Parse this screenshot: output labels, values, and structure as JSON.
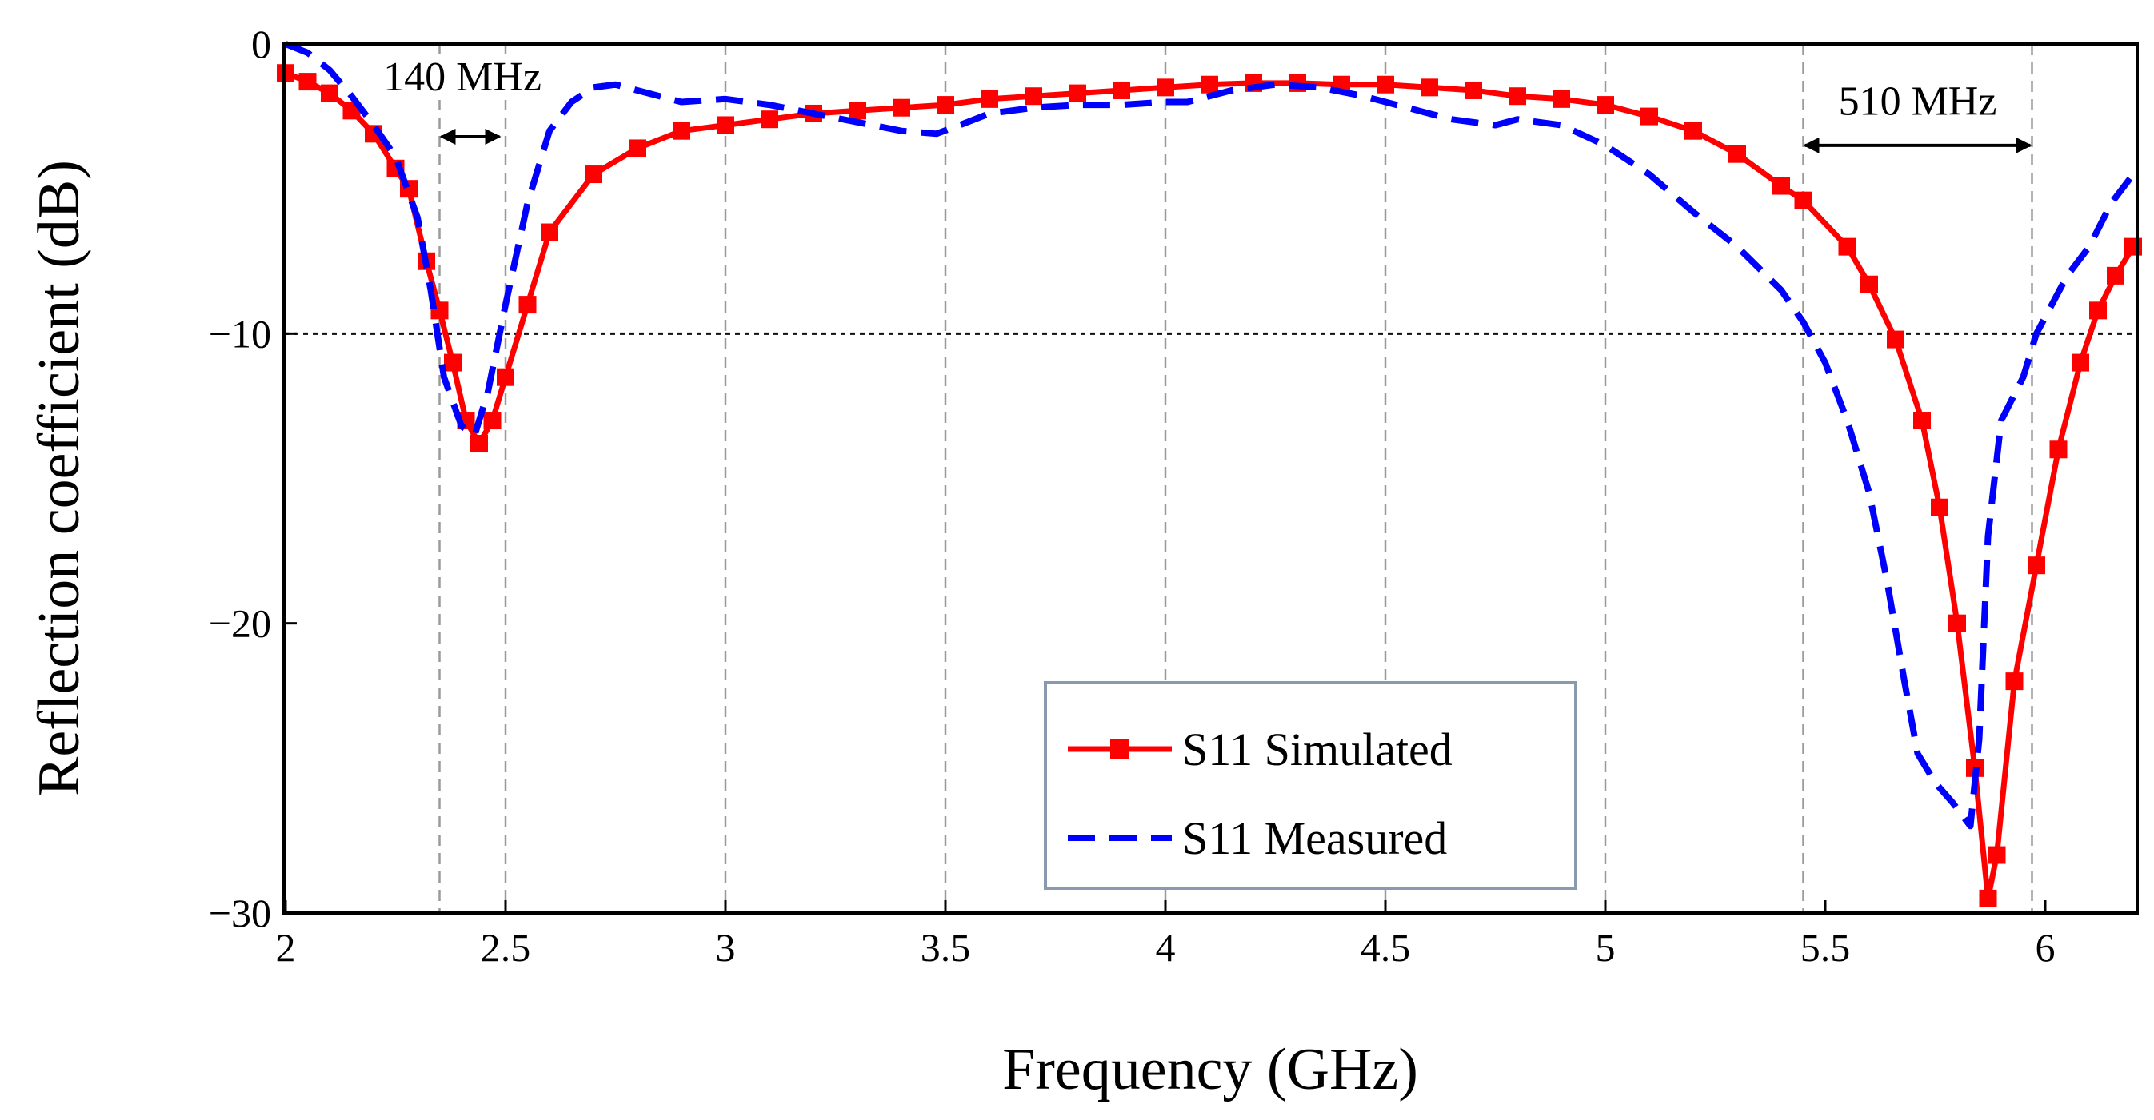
{
  "chart_data": {
    "type": "line",
    "title": "",
    "xlabel": "Frequency (GHz)",
    "ylabel": "Reflection coefficient (dB)",
    "xlim": [
      2,
      6.2
    ],
    "ylim": [
      -30,
      0
    ],
    "x_ticks": [
      2,
      2.5,
      3,
      3.5,
      4,
      4.5,
      5,
      5.5,
      6
    ],
    "x_tick_labels": [
      "2",
      "2.5",
      "3",
      "3.5",
      "4",
      "4.5",
      "5",
      "5.5",
      "6"
    ],
    "y_ticks": [
      0,
      -10,
      -20,
      -30
    ],
    "y_tick_labels": [
      "0",
      "−10",
      "−20",
      "−30"
    ],
    "grid": {
      "vertical_dashed_at": [
        2.35,
        2.5,
        3,
        3.5,
        4,
        4.5,
        5,
        5.45,
        5.97
      ],
      "horizontal_dotted_at": [
        -10
      ]
    },
    "legend": {
      "position": "bottom-center",
      "entries": [
        "S11 Simulated",
        "S11 Measured"
      ]
    },
    "annotations": [
      {
        "text": "140 MHz",
        "from": 2.35,
        "to": 2.49,
        "y": -3.2
      },
      {
        "text": "510 MHz",
        "from": 5.45,
        "to": 5.97,
        "y": -3.5
      }
    ],
    "series": [
      {
        "name": "S11 Simulated",
        "color": "#ff0000",
        "style": "solid-square-markers",
        "points": [
          [
            2.0,
            -1.0
          ],
          [
            2.05,
            -1.3
          ],
          [
            2.1,
            -1.7
          ],
          [
            2.15,
            -2.3
          ],
          [
            2.2,
            -3.1
          ],
          [
            2.25,
            -4.3
          ],
          [
            2.28,
            -5.0
          ],
          [
            2.32,
            -7.5
          ],
          [
            2.35,
            -9.2
          ],
          [
            2.38,
            -11.0
          ],
          [
            2.41,
            -13.0
          ],
          [
            2.44,
            -13.8
          ],
          [
            2.47,
            -13.0
          ],
          [
            2.5,
            -11.5
          ],
          [
            2.55,
            -9.0
          ],
          [
            2.6,
            -6.5
          ],
          [
            2.7,
            -4.5
          ],
          [
            2.8,
            -3.6
          ],
          [
            2.9,
            -3.0
          ],
          [
            3.0,
            -2.8
          ],
          [
            3.1,
            -2.6
          ],
          [
            3.2,
            -2.4
          ],
          [
            3.3,
            -2.3
          ],
          [
            3.4,
            -2.2
          ],
          [
            3.5,
            -2.1
          ],
          [
            3.6,
            -1.9
          ],
          [
            3.7,
            -1.8
          ],
          [
            3.8,
            -1.7
          ],
          [
            3.9,
            -1.6
          ],
          [
            4.0,
            -1.5
          ],
          [
            4.1,
            -1.4
          ],
          [
            4.2,
            -1.35
          ],
          [
            4.3,
            -1.35
          ],
          [
            4.4,
            -1.4
          ],
          [
            4.5,
            -1.4
          ],
          [
            4.6,
            -1.5
          ],
          [
            4.7,
            -1.6
          ],
          [
            4.8,
            -1.8
          ],
          [
            4.9,
            -1.9
          ],
          [
            5.0,
            -2.1
          ],
          [
            5.1,
            -2.5
          ],
          [
            5.2,
            -3.0
          ],
          [
            5.3,
            -3.8
          ],
          [
            5.4,
            -4.9
          ],
          [
            5.45,
            -5.4
          ],
          [
            5.55,
            -7.0
          ],
          [
            5.6,
            -8.3
          ],
          [
            5.66,
            -10.2
          ],
          [
            5.72,
            -13.0
          ],
          [
            5.76,
            -16.0
          ],
          [
            5.8,
            -20.0
          ],
          [
            5.84,
            -25.0
          ],
          [
            5.87,
            -29.5
          ],
          [
            5.89,
            -28.0
          ],
          [
            5.93,
            -22.0
          ],
          [
            5.98,
            -18.0
          ],
          [
            6.03,
            -14.0
          ],
          [
            6.08,
            -11.0
          ],
          [
            6.12,
            -9.2
          ],
          [
            6.16,
            -8.0
          ],
          [
            6.2,
            -7.0
          ]
        ]
      },
      {
        "name": "S11 Measured",
        "color": "#0000ff",
        "style": "dashed",
        "points": [
          [
            2.0,
            0.0
          ],
          [
            2.05,
            -0.3
          ],
          [
            2.1,
            -0.9
          ],
          [
            2.15,
            -1.8
          ],
          [
            2.2,
            -2.8
          ],
          [
            2.25,
            -3.9
          ],
          [
            2.3,
            -6.0
          ],
          [
            2.33,
            -8.5
          ],
          [
            2.36,
            -11.5
          ],
          [
            2.4,
            -13.2
          ],
          [
            2.43,
            -13.5
          ],
          [
            2.46,
            -12.0
          ],
          [
            2.5,
            -9.0
          ],
          [
            2.55,
            -5.5
          ],
          [
            2.6,
            -3.0
          ],
          [
            2.65,
            -2.0
          ],
          [
            2.7,
            -1.5
          ],
          [
            2.75,
            -1.4
          ],
          [
            2.8,
            -1.6
          ],
          [
            2.9,
            -2.0
          ],
          [
            3.0,
            -1.9
          ],
          [
            3.1,
            -2.1
          ],
          [
            3.2,
            -2.4
          ],
          [
            3.3,
            -2.7
          ],
          [
            3.4,
            -3.0
          ],
          [
            3.48,
            -3.1
          ],
          [
            3.55,
            -2.7
          ],
          [
            3.6,
            -2.4
          ],
          [
            3.7,
            -2.2
          ],
          [
            3.8,
            -2.1
          ],
          [
            3.9,
            -2.1
          ],
          [
            4.0,
            -2.0
          ],
          [
            4.05,
            -2.0
          ],
          [
            4.15,
            -1.6
          ],
          [
            4.25,
            -1.4
          ],
          [
            4.35,
            -1.5
          ],
          [
            4.45,
            -1.8
          ],
          [
            4.55,
            -2.2
          ],
          [
            4.65,
            -2.6
          ],
          [
            4.75,
            -2.8
          ],
          [
            4.8,
            -2.6
          ],
          [
            4.9,
            -2.8
          ],
          [
            5.0,
            -3.5
          ],
          [
            5.1,
            -4.5
          ],
          [
            5.2,
            -5.8
          ],
          [
            5.3,
            -7.0
          ],
          [
            5.4,
            -8.5
          ],
          [
            5.45,
            -9.6
          ],
          [
            5.5,
            -11.0
          ],
          [
            5.55,
            -13.0
          ],
          [
            5.6,
            -15.5
          ],
          [
            5.64,
            -18.5
          ],
          [
            5.68,
            -22.0
          ],
          [
            5.71,
            -24.5
          ],
          [
            5.75,
            -25.5
          ],
          [
            5.79,
            -26.2
          ],
          [
            5.83,
            -27.0
          ],
          [
            5.85,
            -24.0
          ],
          [
            5.87,
            -17.0
          ],
          [
            5.9,
            -13.0
          ],
          [
            5.95,
            -11.5
          ],
          [
            5.98,
            -10.0
          ],
          [
            6.05,
            -8.0
          ],
          [
            6.1,
            -7.0
          ],
          [
            6.15,
            -5.5
          ],
          [
            6.2,
            -4.5
          ]
        ]
      }
    ]
  }
}
